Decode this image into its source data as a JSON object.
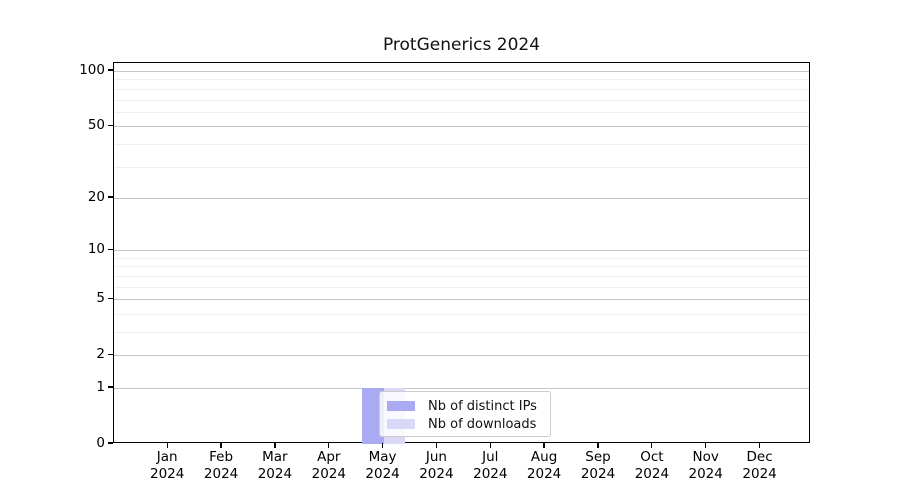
{
  "title": "ProtGenerics 2024",
  "chart_data": {
    "type": "bar",
    "title": "ProtGenerics 2024",
    "categories": [
      {
        "line1": "Jan",
        "line2": "2024"
      },
      {
        "line1": "Feb",
        "line2": "2024"
      },
      {
        "line1": "Mar",
        "line2": "2024"
      },
      {
        "line1": "Apr",
        "line2": "2024"
      },
      {
        "line1": "May",
        "line2": "2024"
      },
      {
        "line1": "Jun",
        "line2": "2024"
      },
      {
        "line1": "Jul",
        "line2": "2024"
      },
      {
        "line1": "Aug",
        "line2": "2024"
      },
      {
        "line1": "Sep",
        "line2": "2024"
      },
      {
        "line1": "Oct",
        "line2": "2024"
      },
      {
        "line1": "Nov",
        "line2": "2024"
      },
      {
        "line1": "Dec",
        "line2": "2024"
      }
    ],
    "series": [
      {
        "name": "Nb of distinct IPs",
        "color": "#aaaaf2",
        "values": [
          0,
          0,
          0,
          0,
          1,
          0,
          0,
          0,
          0,
          0,
          0,
          0
        ]
      },
      {
        "name": "Nb of downloads",
        "color": "#d9d9f7",
        "values": [
          0,
          0,
          0,
          0,
          1,
          0,
          0,
          0,
          0,
          0,
          0,
          0
        ]
      }
    ],
    "xlabel": "",
    "ylabel": "",
    "yscale": "log1p",
    "ylim": [
      0,
      110
    ],
    "yticks": [
      0,
      1,
      2,
      5,
      10,
      20,
      50,
      100
    ],
    "minor_yticks": [
      3,
      4,
      6,
      7,
      8,
      9,
      30,
      40,
      60,
      70,
      80,
      90
    ],
    "grid": true,
    "plot_border": "#000000",
    "major_grid_color": "#c6c6c6",
    "minor_grid_color": "#efefef",
    "legend": {
      "position": "inside-bottom-center",
      "background": "rgba(255,255,255,0.8)",
      "border_color": "#cccccc"
    }
  }
}
